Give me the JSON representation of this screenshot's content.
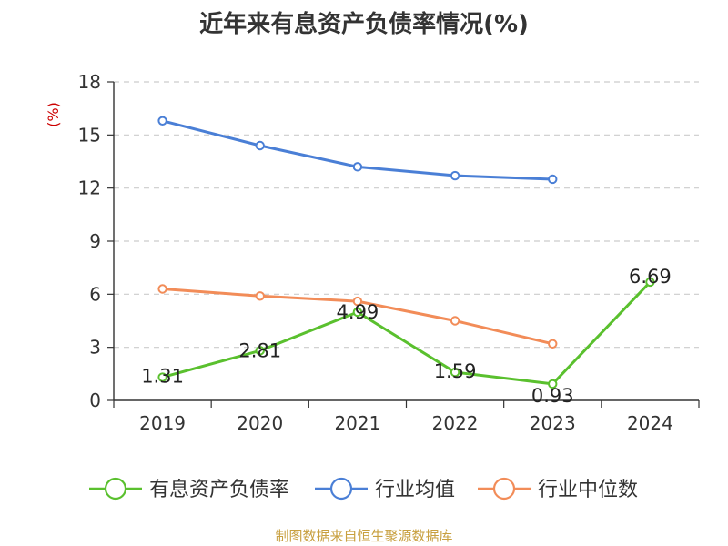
{
  "chart_data": {
    "type": "line",
    "title": "近年来有息资产负债率情况(%)",
    "ylabel": "(%)",
    "ylim": [
      0,
      18
    ],
    "yticks": [
      0,
      3,
      6,
      9,
      12,
      15,
      18
    ],
    "categories": [
      "2019",
      "2020",
      "2021",
      "2022",
      "2023",
      "2024"
    ],
    "grid": true,
    "legend_position": "bottom",
    "series": [
      {
        "name": "有息资产负债率",
        "color": "#5ac02e",
        "values": [
          1.31,
          2.81,
          4.99,
          1.59,
          0.93,
          6.69
        ],
        "show_labels": true
      },
      {
        "name": "行业均值",
        "color": "#4a7fd6",
        "values": [
          15.8,
          14.4,
          13.2,
          12.7,
          12.5,
          null
        ],
        "show_labels": false
      },
      {
        "name": "行业中位数",
        "color": "#f28c58",
        "values": [
          6.3,
          5.9,
          5.6,
          4.5,
          3.2,
          null
        ],
        "show_labels": false
      }
    ]
  },
  "source": "制图数据来自恒生聚源数据库",
  "colors": {
    "axis": "#333333",
    "grid": "#cccccc",
    "unit": "#cc0000"
  }
}
